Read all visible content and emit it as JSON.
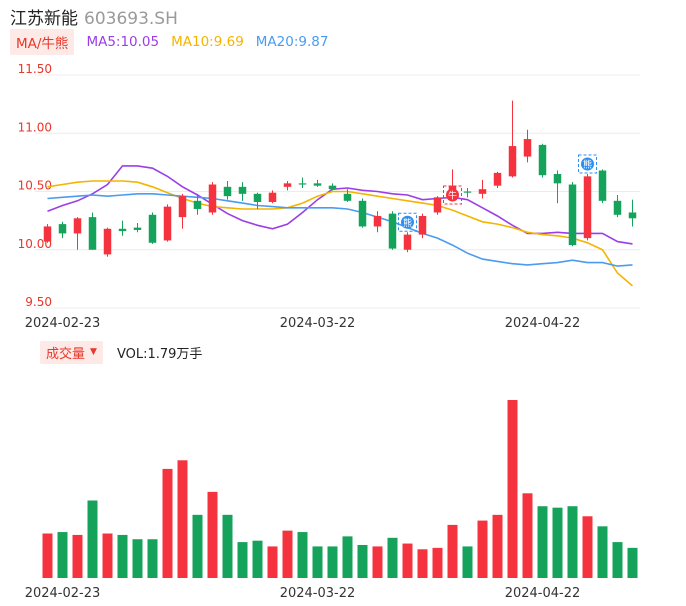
{
  "header": {
    "stock_name": "江苏新能",
    "stock_code": "603693.SH"
  },
  "ma_bar": {
    "selector_label": "MA/牛熊",
    "ma5": "MA5:10.05",
    "ma10": "MA10:9.69",
    "ma20": "MA20:9.87",
    "colors": {
      "ma5": "#9b3ee8",
      "ma10": "#f5b400",
      "ma20": "#4a9cf0"
    }
  },
  "volume_bar": {
    "selector_label": "成交量",
    "vol_label": "VOL:1.79万手"
  },
  "colors": {
    "up": "#f5333f",
    "down": "#15a25a",
    "axis_text": "#e8372b"
  },
  "chart_data": {
    "type": "candlestick",
    "price_axis": {
      "ylim": [
        9.5,
        11.5
      ],
      "ticks": [
        "11.50",
        "11.00",
        "10.50",
        "10.00",
        "9.50"
      ]
    },
    "x_tick_labels": [
      {
        "index": 1,
        "label": "2024-02-23"
      },
      {
        "index": 18,
        "label": "2024-03-22"
      },
      {
        "index": 33,
        "label": "2024-04-22"
      }
    ],
    "candles": [
      {
        "o": 10.07,
        "c": 10.2,
        "h": 10.22,
        "l": 10.06
      },
      {
        "o": 10.22,
        "c": 10.14,
        "h": 10.24,
        "l": 10.1
      },
      {
        "o": 10.14,
        "c": 10.27,
        "h": 10.28,
        "l": 10.0
      },
      {
        "o": 10.28,
        "c": 10.0,
        "h": 10.32,
        "l": 10.0
      },
      {
        "o": 9.96,
        "c": 10.18,
        "h": 10.19,
        "l": 9.94
      },
      {
        "o": 10.18,
        "c": 10.16,
        "h": 10.25,
        "l": 10.12
      },
      {
        "o": 10.19,
        "c": 10.17,
        "h": 10.23,
        "l": 10.15
      },
      {
        "o": 10.3,
        "c": 10.06,
        "h": 10.32,
        "l": 10.05
      },
      {
        "o": 10.08,
        "c": 10.37,
        "h": 10.39,
        "l": 10.07
      },
      {
        "o": 10.28,
        "c": 10.46,
        "h": 10.48,
        "l": 10.18
      },
      {
        "o": 10.42,
        "c": 10.35,
        "h": 10.48,
        "l": 10.3
      },
      {
        "o": 10.32,
        "c": 10.56,
        "h": 10.58,
        "l": 10.3
      },
      {
        "o": 10.54,
        "c": 10.46,
        "h": 10.59,
        "l": 10.43
      },
      {
        "o": 10.54,
        "c": 10.48,
        "h": 10.58,
        "l": 10.42
      },
      {
        "o": 10.48,
        "c": 10.41,
        "h": 10.49,
        "l": 10.35
      },
      {
        "o": 10.41,
        "c": 10.49,
        "h": 10.51,
        "l": 10.4
      },
      {
        "o": 10.54,
        "c": 10.57,
        "h": 10.59,
        "l": 10.51
      },
      {
        "o": 10.57,
        "c": 10.56,
        "h": 10.62,
        "l": 10.53
      },
      {
        "o": 10.57,
        "c": 10.55,
        "h": 10.6,
        "l": 10.54
      },
      {
        "o": 10.55,
        "c": 10.52,
        "h": 10.57,
        "l": 10.51
      },
      {
        "o": 10.48,
        "c": 10.42,
        "h": 10.52,
        "l": 10.41
      },
      {
        "o": 10.42,
        "c": 10.2,
        "h": 10.44,
        "l": 10.19
      },
      {
        "o": 10.2,
        "c": 10.29,
        "h": 10.33,
        "l": 10.15
      },
      {
        "o": 10.31,
        "c": 10.01,
        "h": 10.33,
        "l": 10.0
      },
      {
        "o": 10.0,
        "c": 10.13,
        "h": 10.15,
        "l": 9.98
      },
      {
        "o": 10.13,
        "c": 10.29,
        "h": 10.31,
        "l": 10.1
      },
      {
        "o": 10.32,
        "c": 10.45,
        "h": 10.46,
        "l": 10.3
      },
      {
        "o": 10.49,
        "c": 10.55,
        "h": 10.69,
        "l": 10.47
      },
      {
        "o": 10.5,
        "c": 10.49,
        "h": 10.53,
        "l": 10.45
      },
      {
        "o": 10.48,
        "c": 10.52,
        "h": 10.6,
        "l": 10.44
      },
      {
        "o": 10.55,
        "c": 10.66,
        "h": 10.67,
        "l": 10.53
      },
      {
        "o": 10.63,
        "c": 10.89,
        "h": 11.28,
        "l": 10.62
      },
      {
        "o": 10.8,
        "c": 10.95,
        "h": 11.03,
        "l": 10.75
      },
      {
        "o": 10.9,
        "c": 10.64,
        "h": 10.91,
        "l": 10.62
      },
      {
        "o": 10.65,
        "c": 10.57,
        "h": 10.68,
        "l": 10.4
      },
      {
        "o": 10.56,
        "c": 10.04,
        "h": 10.58,
        "l": 10.03
      },
      {
        "o": 10.1,
        "c": 10.63,
        "h": 10.65,
        "l": 10.08
      },
      {
        "o": 10.68,
        "c": 10.42,
        "h": 10.69,
        "l": 10.4
      },
      {
        "o": 10.42,
        "c": 10.3,
        "h": 10.47,
        "l": 10.28
      },
      {
        "o": 10.32,
        "c": 10.27,
        "h": 10.43,
        "l": 10.2
      }
    ],
    "volumes": [
      3.1,
      3.2,
      3.0,
      5.4,
      3.1,
      3.0,
      2.7,
      2.7,
      7.6,
      8.2,
      4.4,
      6.0,
      4.4,
      2.5,
      2.6,
      2.2,
      3.3,
      3.2,
      2.2,
      2.2,
      2.9,
      2.3,
      2.2,
      2.8,
      2.4,
      2.0,
      2.1,
      3.7,
      2.2,
      4.0,
      4.4,
      12.4,
      5.9,
      5.0,
      4.9,
      5.0,
      4.3,
      3.6,
      2.5,
      2.1
    ],
    "ma_series": [
      {
        "name": "MA5",
        "values": [
          10.33,
          10.38,
          10.42,
          10.48,
          10.56,
          10.72,
          10.72,
          10.7,
          10.63,
          10.54,
          10.47,
          10.39,
          10.31,
          10.25,
          10.21,
          10.18,
          10.22,
          10.32,
          10.43,
          10.52,
          10.53,
          10.51,
          10.5,
          10.48,
          10.47,
          10.43,
          10.44,
          10.45,
          10.43,
          10.36,
          10.29,
          10.21,
          10.14,
          10.14,
          10.15,
          10.14,
          10.14,
          10.14,
          10.07,
          10.05
        ]
      },
      {
        "name": "MA10",
        "values": [
          10.54,
          10.56,
          10.58,
          10.59,
          10.59,
          10.59,
          10.58,
          10.54,
          10.49,
          10.44,
          10.4,
          10.37,
          10.36,
          10.35,
          10.35,
          10.35,
          10.36,
          10.4,
          10.46,
          10.5,
          10.5,
          10.48,
          10.46,
          10.44,
          10.42,
          10.4,
          10.38,
          10.34,
          10.29,
          10.24,
          10.22,
          10.19,
          10.15,
          10.13,
          10.12,
          10.1,
          10.06,
          10.0,
          9.8,
          9.69
        ]
      },
      {
        "name": "MA20",
        "values": [
          10.44,
          10.45,
          10.46,
          10.47,
          10.46,
          10.47,
          10.48,
          10.48,
          10.47,
          10.46,
          10.45,
          10.44,
          10.42,
          10.4,
          10.38,
          10.37,
          10.36,
          10.36,
          10.36,
          10.36,
          10.35,
          10.32,
          10.28,
          10.24,
          10.19,
          10.14,
          10.1,
          10.04,
          9.97,
          9.92,
          9.9,
          9.88,
          9.87,
          9.88,
          9.89,
          9.91,
          9.89,
          9.89,
          9.86,
          9.87
        ]
      }
    ],
    "markers": [
      {
        "index": 24,
        "text": "熊",
        "kind": "bear"
      },
      {
        "index": 27,
        "text": "牛",
        "kind": "bull"
      },
      {
        "index": 36,
        "text": "熊",
        "kind": "bear"
      }
    ]
  }
}
